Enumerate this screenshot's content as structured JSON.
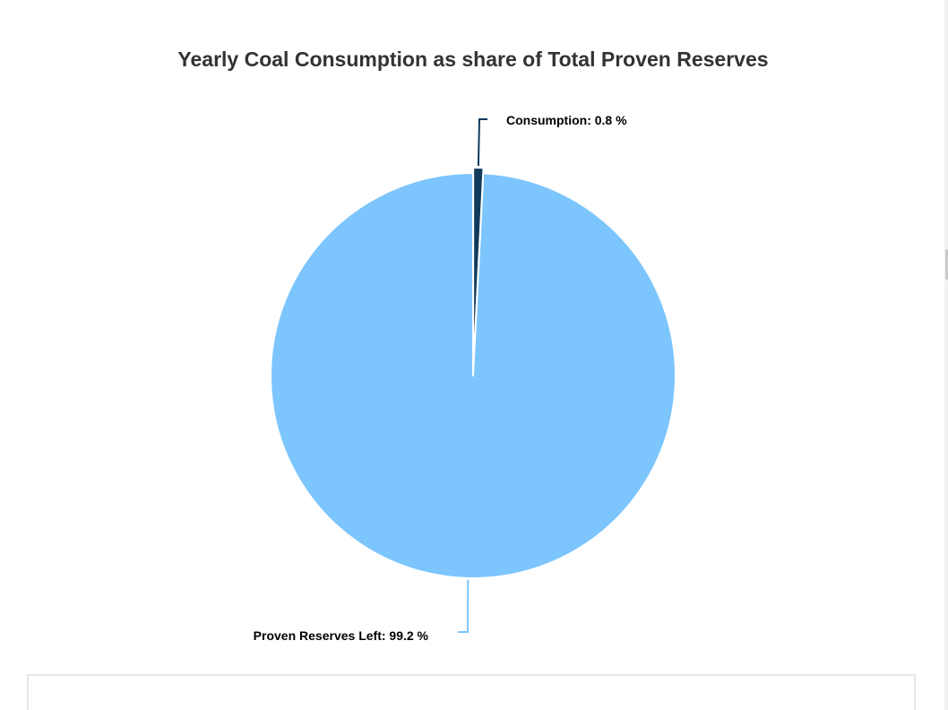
{
  "chart_data": {
    "type": "pie",
    "title": "Yearly Coal Consumption as share of Total Proven Reserves",
    "slices": [
      {
        "name": "Consumption",
        "value": 0.8,
        "label": "Consumption: 0.8 %",
        "color": "#0f3a5c"
      },
      {
        "name": "Proven Reserves Left",
        "value": 99.2,
        "label": "Proven Reserves Left: 99.2 %",
        "color": "#7cc5fd"
      }
    ],
    "start_angle": "12 o'clock",
    "direction": "clockwise",
    "legend": "none"
  }
}
